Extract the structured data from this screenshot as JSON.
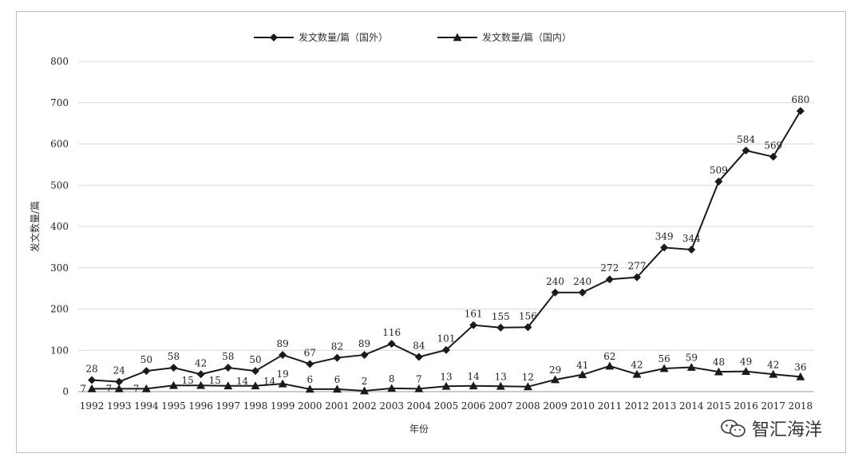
{
  "chart_data": {
    "type": "line",
    "title": "",
    "xlabel": "年份",
    "ylabel": "发文数量/篇",
    "ylim": [
      0,
      800
    ],
    "yticks": [
      0,
      100,
      200,
      300,
      400,
      500,
      600,
      700,
      800
    ],
    "grid": "horizontal",
    "legend_position": "top-center",
    "x": [
      "1992",
      "1993",
      "1994",
      "1995",
      "1996",
      "1997",
      "1998",
      "1999",
      "2000",
      "2001",
      "2002",
      "2003",
      "2004",
      "2005",
      "2006",
      "2007",
      "2008",
      "2009",
      "2010",
      "2011",
      "2012",
      "2013",
      "2014",
      "2015",
      "2016",
      "2017",
      "2018"
    ],
    "series": [
      {
        "name": "发文数量/篇（国外）",
        "marker": "diamond",
        "color": "#1a1a1a",
        "values": [
          28,
          24,
          50,
          58,
          42,
          58,
          50,
          89,
          67,
          82,
          89,
          116,
          84,
          101,
          161,
          155,
          156,
          240,
          240,
          272,
          277,
          349,
          344,
          509,
          584,
          569,
          680
        ]
      },
      {
        "name": "发文数量/篇（国内）",
        "marker": "triangle",
        "color": "#1a1a1a",
        "values": [
          7,
          7,
          7,
          15,
          15,
          14,
          14,
          19,
          6,
          6,
          2,
          8,
          7,
          13,
          14,
          13,
          12,
          29,
          41,
          62,
          42,
          56,
          59,
          48,
          49,
          42,
          36
        ]
      }
    ]
  },
  "watermark": {
    "text": "智汇海洋",
    "icon": "wechat-icon"
  }
}
